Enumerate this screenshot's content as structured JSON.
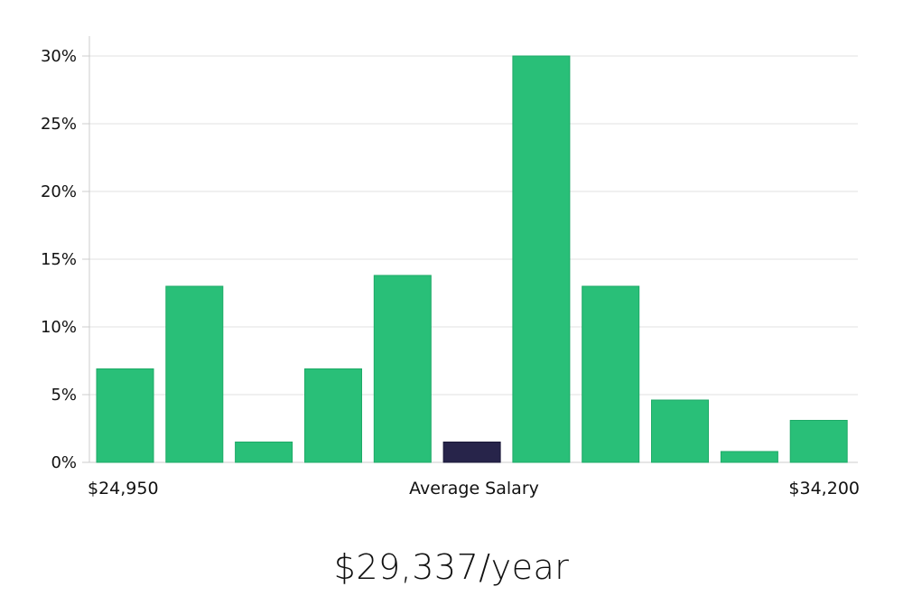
{
  "chart_data": {
    "type": "bar",
    "title": "",
    "xlabel": "Average Salary",
    "ylabel": "",
    "x_min_label": "$24,950",
    "x_max_label": "$34,200",
    "ylim": [
      0,
      30
    ],
    "y_ticks": [
      0,
      5,
      10,
      15,
      20,
      25,
      30
    ],
    "y_tick_labels": [
      "0%",
      "5%",
      "10%",
      "15%",
      "20%",
      "25%",
      "30%"
    ],
    "grid": true,
    "values": [
      6.9,
      13.0,
      1.5,
      6.9,
      13.8,
      1.5,
      30.0,
      13.0,
      4.6,
      0.8,
      3.1
    ],
    "highlight_index": 5,
    "colors": {
      "bar": "#29bf78",
      "bar_stroke": "#1eaa67",
      "highlight": "#27244a",
      "grid": "#e2e2e2",
      "axis": "#cccccc"
    }
  },
  "salary": {
    "headline": "$29,337/year"
  }
}
